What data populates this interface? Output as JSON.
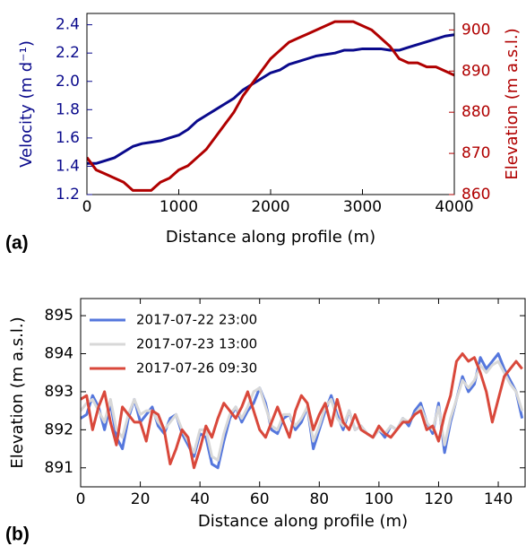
{
  "chart_data": [
    {
      "type": "line",
      "panel_label": "(a)",
      "xlabel": "Distance along profile (m)",
      "ylabel": "Velocity (m d⁻¹)",
      "y2label": "Elevation (m a.s.l.)",
      "x": [
        0,
        100,
        200,
        300,
        400,
        500,
        600,
        700,
        800,
        900,
        1000,
        1100,
        1200,
        1300,
        1400,
        1500,
        1600,
        1700,
        1800,
        1900,
        2000,
        2100,
        2200,
        2300,
        2400,
        2500,
        2600,
        2700,
        2800,
        2900,
        3000,
        3100,
        3200,
        3300,
        3400,
        3500,
        3600,
        3700,
        3800,
        3900,
        4000
      ],
      "series": [
        {
          "color": "#0a0a8c",
          "axis": "y",
          "values": [
            1.42,
            1.42,
            1.44,
            1.46,
            1.5,
            1.54,
            1.56,
            1.57,
            1.58,
            1.6,
            1.62,
            1.66,
            1.72,
            1.76,
            1.8,
            1.84,
            1.88,
            1.94,
            1.98,
            2.02,
            2.06,
            2.08,
            2.12,
            2.14,
            2.16,
            2.18,
            2.19,
            2.2,
            2.22,
            2.22,
            2.23,
            2.23,
            2.23,
            2.22,
            2.22,
            2.24,
            2.26,
            2.28,
            2.3,
            2.32,
            2.33
          ]
        },
        {
          "color": "#b00000",
          "axis": "y2",
          "values": [
            869,
            866,
            865,
            864,
            863,
            861,
            861,
            861,
            863,
            864,
            866,
            867,
            869,
            871,
            874,
            877,
            880,
            884,
            887,
            890,
            893,
            895,
            897,
            898,
            899,
            900,
            901,
            902,
            902,
            902,
            901,
            900,
            898,
            896,
            893,
            892,
            892,
            891,
            891,
            890,
            889
          ]
        }
      ],
      "xlim": [
        0,
        4000
      ],
      "xticks": [
        0,
        1000,
        2000,
        3000,
        4000
      ],
      "ylim": [
        1.2,
        2.48
      ],
      "yticks": [
        1.2,
        1.4,
        1.6,
        1.8,
        {
          "value": 2,
          "label": "2.0"
        },
        2.2,
        2.4
      ],
      "y2lim": [
        860,
        904
      ],
      "y2ticks": [
        860,
        870,
        880,
        890,
        900
      ]
    },
    {
      "type": "line",
      "panel_label": "(b)",
      "xlabel": "Distance along profile (m)",
      "ylabel": "Elevation (m a.s.l.)",
      "legend": "upper left",
      "x": [
        0,
        2,
        4,
        6,
        8,
        10,
        12,
        14,
        16,
        18,
        20,
        22,
        24,
        26,
        28,
        30,
        32,
        34,
        36,
        38,
        40,
        42,
        44,
        46,
        48,
        50,
        52,
        54,
        56,
        58,
        60,
        62,
        64,
        66,
        68,
        70,
        72,
        74,
        76,
        78,
        80,
        82,
        84,
        86,
        88,
        90,
        92,
        94,
        96,
        98,
        100,
        102,
        104,
        106,
        108,
        110,
        112,
        114,
        116,
        118,
        120,
        122,
        124,
        126,
        128,
        130,
        132,
        134,
        136,
        138,
        140,
        142,
        144,
        146,
        148
      ],
      "series": [
        {
          "name": "2017-07-22 23:00",
          "color": "#5577dd",
          "values": [
            892.3,
            892.4,
            892.9,
            892.6,
            892.0,
            892.7,
            891.8,
            891.5,
            892.3,
            892.8,
            892.2,
            892.4,
            892.6,
            892.1,
            891.9,
            892.3,
            892.4,
            891.9,
            891.6,
            891.3,
            891.9,
            891.8,
            891.1,
            891.0,
            891.7,
            892.3,
            892.6,
            892.2,
            892.5,
            892.7,
            893.1,
            892.7,
            892.0,
            891.9,
            892.3,
            892.4,
            892.0,
            892.2,
            892.6,
            891.5,
            892.0,
            892.5,
            892.9,
            892.4,
            892.0,
            892.5,
            892.0,
            892.1,
            891.9,
            891.8,
            892.0,
            891.8,
            892.1,
            892.0,
            892.3,
            892.1,
            892.5,
            892.7,
            892.2,
            891.9,
            892.7,
            891.4,
            892.2,
            892.8,
            893.4,
            893.0,
            893.2,
            893.9,
            893.6,
            893.8,
            894.0,
            893.6,
            893.3,
            893.0,
            892.3
          ]
        },
        {
          "name": "2017-07-23 13:00",
          "color": "#d8d8d8",
          "values": [
            892.5,
            892.7,
            892.8,
            892.5,
            892.2,
            892.8,
            892.0,
            891.8,
            892.4,
            892.8,
            892.4,
            892.5,
            892.5,
            892.2,
            892.0,
            892.2,
            892.4,
            892.0,
            891.7,
            891.4,
            892.0,
            892.0,
            891.3,
            891.2,
            891.9,
            892.4,
            892.6,
            892.3,
            892.6,
            893.0,
            893.1,
            892.6,
            892.1,
            892.0,
            892.4,
            892.4,
            892.1,
            892.3,
            892.6,
            891.7,
            892.1,
            892.6,
            892.8,
            892.3,
            892.1,
            892.5,
            892.0,
            892.1,
            891.9,
            891.8,
            892.0,
            891.9,
            892.1,
            892.0,
            892.3,
            892.2,
            892.4,
            892.6,
            892.2,
            892.0,
            892.6,
            891.6,
            892.3,
            892.8,
            893.3,
            893.1,
            893.3,
            893.7,
            893.5,
            893.7,
            893.8,
            893.5,
            893.2,
            893.0,
            892.5
          ]
        },
        {
          "name": "2017-07-26 09:30",
          "color": "#d9483b",
          "values": [
            892.8,
            892.9,
            892.0,
            892.6,
            893.0,
            892.2,
            891.6,
            892.6,
            892.4,
            892.2,
            892.2,
            891.7,
            892.5,
            892.4,
            892.0,
            891.1,
            891.5,
            892.0,
            891.8,
            891.0,
            891.5,
            892.1,
            891.8,
            892.3,
            892.7,
            892.5,
            892.3,
            892.6,
            893.0,
            892.5,
            892.0,
            891.8,
            892.2,
            892.6,
            892.2,
            891.8,
            892.5,
            892.9,
            892.7,
            892.0,
            892.4,
            892.7,
            892.1,
            892.8,
            892.2,
            892.0,
            892.4,
            892.0,
            891.9,
            891.8,
            892.1,
            891.9,
            891.8,
            892.0,
            892.2,
            892.2,
            892.4,
            892.5,
            892.0,
            892.1,
            891.7,
            892.4,
            892.9,
            893.8,
            894.0,
            893.8,
            893.9,
            893.5,
            893.0,
            892.2,
            892.8,
            893.4,
            893.6,
            893.8,
            893.6
          ]
        }
      ],
      "xlim": [
        0,
        149
      ],
      "xticks": [
        0,
        20,
        40,
        60,
        80,
        100,
        120,
        140
      ],
      "ylim": [
        890.5,
        895.45
      ],
      "yticks": [
        891,
        892,
        893,
        894,
        895
      ]
    }
  ]
}
